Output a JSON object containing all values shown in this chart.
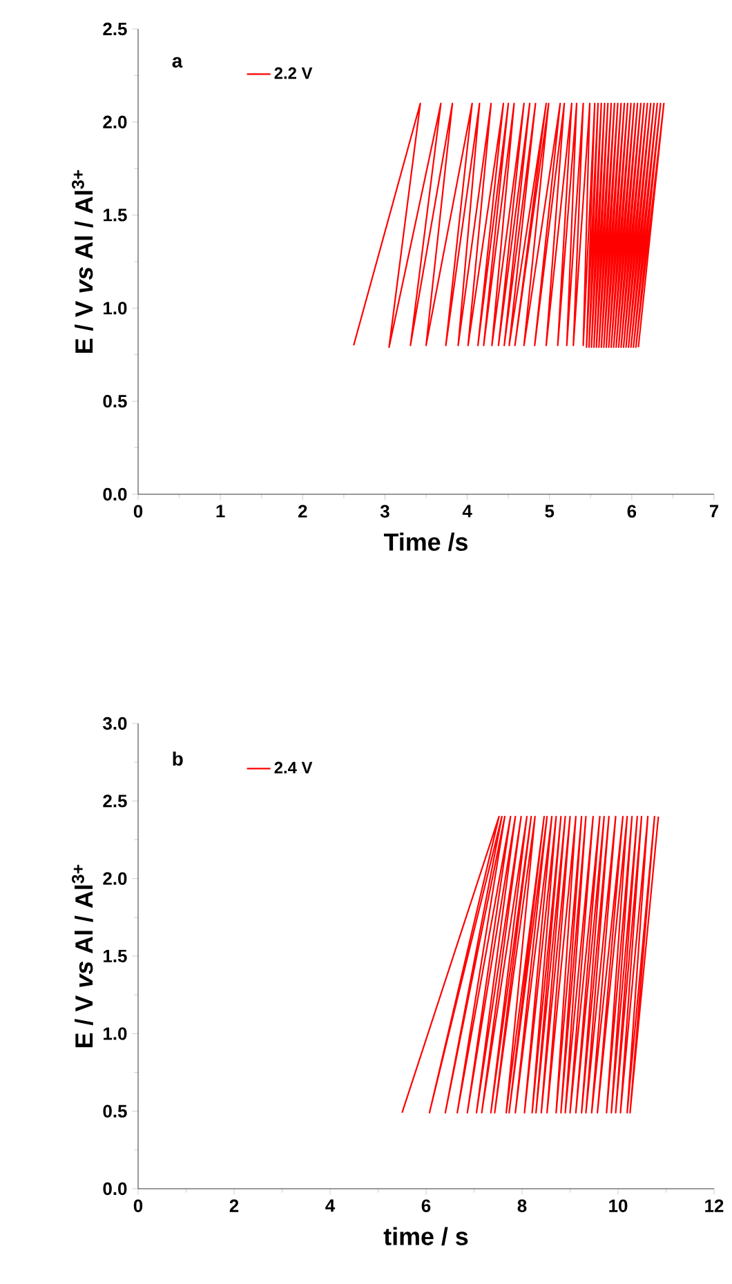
{
  "chart_data": [
    {
      "type": "line",
      "annotations": [
        "a"
      ],
      "xlabel": "Time /s",
      "ylabel": "E / V *vs* Al / Al$^{3+}$",
      "legend": "top left",
      "xlim": [
        0,
        7
      ],
      "ylim": [
        0,
        2.5
      ],
      "xticks": [
        0,
        1,
        2,
        3,
        4,
        5,
        6,
        7
      ],
      "yticks": [
        {
          "value": 0,
          "label": "0.0"
        },
        {
          "value": 0.5,
          "label": "0.5"
        },
        {
          "value": 1,
          "label": "1.0"
        },
        {
          "value": 1.5,
          "label": "1.5"
        },
        {
          "value": 2,
          "label": "2.0"
        },
        {
          "value": 2.5,
          "label": "2.5"
        }
      ],
      "series": [
        {
          "name": "2.2 V",
          "color": "#ff0000",
          "x": [
            2.62,
            3.43,
            3.05,
            3.68,
            3.31,
            3.82,
            3.5,
            4.06,
            3.74,
            4.15,
            3.89,
            4.29,
            4.01,
            4.44,
            4.13,
            4.5,
            4.2,
            4.57,
            4.3,
            4.69,
            4.38,
            4.76,
            4.45,
            4.83,
            4.51,
            4.96,
            4.58,
            4.99,
            4.69,
            5.13,
            4.82,
            5.18,
            4.96,
            5.27,
            5.1,
            5.33,
            5.21,
            5.41,
            5.29,
            5.49,
            5.41,
            5.55,
            5.45,
            5.59,
            5.48,
            5.63,
            5.51,
            5.67,
            5.54,
            5.71,
            5.57,
            5.75,
            5.6,
            5.79,
            5.63,
            5.83,
            5.66,
            5.87,
            5.69,
            5.91,
            5.72,
            5.95,
            5.75,
            5.99,
            5.78,
            6.03,
            5.81,
            6.07,
            5.84,
            6.11,
            5.87,
            6.15,
            5.9,
            6.19,
            5.93,
            6.23,
            5.96,
            6.27,
            5.99,
            6.31,
            6.02,
            6.35,
            6.05,
            6.39,
            6.08
          ],
          "values": [
            0.8,
            2.1,
            0.79,
            2.1,
            0.8,
            2.1,
            0.8,
            2.1,
            0.8,
            2.1,
            0.8,
            2.1,
            0.8,
            2.1,
            0.8,
            2.1,
            0.8,
            2.1,
            0.8,
            2.1,
            0.8,
            2.1,
            0.8,
            2.1,
            0.8,
            2.1,
            0.8,
            2.1,
            0.8,
            2.1,
            0.8,
            2.1,
            0.8,
            2.1,
            0.8,
            2.1,
            0.8,
            2.1,
            0.8,
            2.1,
            0.8,
            2.1,
            0.79,
            2.1,
            0.79,
            2.1,
            0.79,
            2.1,
            0.79,
            2.1,
            0.79,
            2.1,
            0.79,
            2.1,
            0.79,
            2.1,
            0.79,
            2.1,
            0.79,
            2.1,
            0.79,
            2.1,
            0.79,
            2.1,
            0.79,
            2.1,
            0.79,
            2.1,
            0.79,
            2.1,
            0.79,
            2.1,
            0.79,
            2.1,
            0.79,
            2.1,
            0.79,
            2.1,
            0.79,
            2.1,
            0.79,
            2.1,
            0.79,
            2.1,
            0.79
          ]
        }
      ]
    },
    {
      "type": "line",
      "annotations": [
        "b"
      ],
      "xlabel": "time / s",
      "ylabel": "E / V *vs* Al / Al$^{3+}$",
      "legend": "top left",
      "xlim": [
        0,
        12
      ],
      "ylim": [
        0,
        3
      ],
      "xticks": [
        0,
        2,
        4,
        6,
        8,
        10,
        12
      ],
      "yticks": [
        {
          "value": 0,
          "label": "0.0"
        },
        {
          "value": 0.5,
          "label": "0.5"
        },
        {
          "value": 1,
          "label": "1.0"
        },
        {
          "value": 1.5,
          "label": "1.5"
        },
        {
          "value": 2,
          "label": "2.0"
        },
        {
          "value": 2.5,
          "label": "2.5"
        },
        {
          "value": 3,
          "label": "3.0"
        }
      ],
      "series": [
        {
          "name": "2.4 V",
          "color": "#ff0000",
          "x": [
            5.5,
            7.52,
            6.07,
            7.58,
            6.4,
            7.64,
            6.65,
            7.76,
            6.86,
            7.86,
            7.05,
            7.98,
            7.16,
            8.1,
            7.35,
            8.19,
            7.43,
            8.27,
            7.67,
            8.46,
            7.73,
            8.52,
            7.86,
            8.62,
            8.05,
            8.71,
            8.21,
            8.81,
            8.29,
            8.9,
            8.4,
            9.0,
            8.52,
            9.12,
            8.71,
            9.24,
            8.81,
            9.33,
            8.9,
            9.48,
            9.0,
            9.62,
            9.12,
            9.71,
            9.24,
            9.81,
            9.33,
            9.95,
            9.45,
            10.1,
            9.57,
            10.19,
            9.76,
            10.29,
            9.86,
            10.4,
            9.95,
            10.49,
            10.05,
            10.62,
            10.19,
            10.76,
            10.25,
            10.84
          ],
          "values": [
            0.49,
            2.4,
            0.49,
            2.4,
            0.49,
            2.4,
            0.49,
            2.4,
            0.49,
            2.4,
            0.49,
            2.4,
            0.49,
            2.4,
            0.49,
            2.4,
            0.49,
            2.4,
            0.49,
            2.4,
            0.49,
            2.4,
            0.49,
            2.4,
            0.49,
            2.4,
            0.49,
            2.4,
            0.49,
            2.4,
            0.49,
            2.4,
            0.49,
            2.4,
            0.49,
            2.4,
            0.49,
            2.4,
            0.49,
            2.4,
            0.49,
            2.4,
            0.49,
            2.4,
            0.49,
            2.4,
            0.49,
            2.4,
            0.49,
            2.4,
            0.49,
            2.4,
            0.49,
            2.4,
            0.49,
            2.4,
            0.49,
            2.4,
            0.49,
            2.4,
            0.49,
            2.4,
            0.49,
            2.4
          ]
        }
      ]
    }
  ]
}
